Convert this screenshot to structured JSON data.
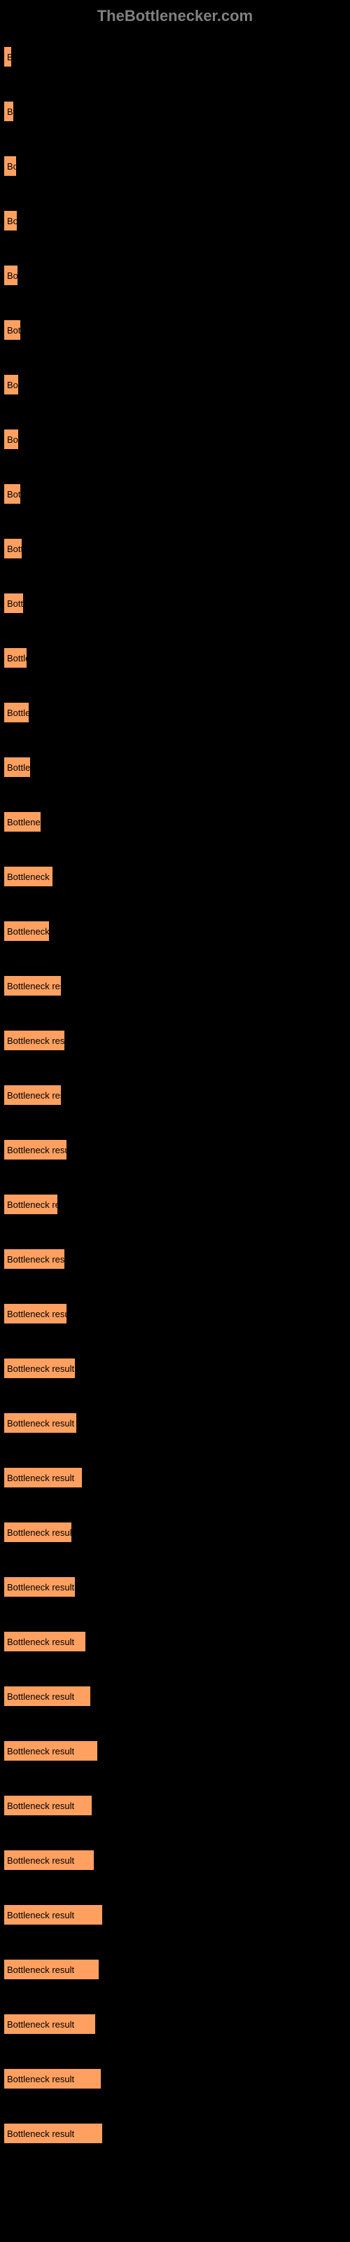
{
  "header": {
    "title": "TheBottlenecker.com"
  },
  "chart": {
    "type": "bar",
    "background_color": "#000000",
    "bar_color": "#ffa060",
    "bar_border_color": "#000000",
    "label_color": "#000000",
    "header_color": "#808080",
    "label_fontsize": 13,
    "header_fontsize": 22,
    "max_width": 490,
    "bars": [
      {
        "label": "B",
        "width_pct": 2.5
      },
      {
        "label": "B",
        "width_pct": 3
      },
      {
        "label": "Bo",
        "width_pct": 3.8
      },
      {
        "label": "Bo",
        "width_pct": 4
      },
      {
        "label": "Bo",
        "width_pct": 4.2
      },
      {
        "label": "Bot",
        "width_pct": 5
      },
      {
        "label": "Bo",
        "width_pct": 4.5
      },
      {
        "label": "Bo",
        "width_pct": 4.5
      },
      {
        "label": "Bot",
        "width_pct": 5.2
      },
      {
        "label": "Bott",
        "width_pct": 5.5
      },
      {
        "label": "Bottl",
        "width_pct": 6
      },
      {
        "label": "Bottle",
        "width_pct": 7
      },
      {
        "label": "Bottle",
        "width_pct": 7.5
      },
      {
        "label": "Bottlec",
        "width_pct": 8
      },
      {
        "label": "Bottleneck",
        "width_pct": 11
      },
      {
        "label": "Bottleneck res",
        "width_pct": 14.5
      },
      {
        "label": "Bottleneck r",
        "width_pct": 13.5
      },
      {
        "label": "Bottleneck result",
        "width_pct": 17
      },
      {
        "label": "Bottleneck result",
        "width_pct": 18
      },
      {
        "label": "Bottleneck resul",
        "width_pct": 17
      },
      {
        "label": "Bottleneck result",
        "width_pct": 18.5
      },
      {
        "label": "Bottleneck res",
        "width_pct": 16
      },
      {
        "label": "Bottleneck result",
        "width_pct": 18
      },
      {
        "label": "Bottleneck result",
        "width_pct": 18.5
      },
      {
        "label": "Bottleneck result",
        "width_pct": 21
      },
      {
        "label": "Bottleneck result",
        "width_pct": 21.5
      },
      {
        "label": "Bottleneck result",
        "width_pct": 23
      },
      {
        "label": "Bottleneck result",
        "width_pct": 20
      },
      {
        "label": "Bottleneck result",
        "width_pct": 21
      },
      {
        "label": "Bottleneck result",
        "width_pct": 24
      },
      {
        "label": "Bottleneck result",
        "width_pct": 25.5
      },
      {
        "label": "Bottleneck result",
        "width_pct": 27.5
      },
      {
        "label": "Bottleneck result",
        "width_pct": 26
      },
      {
        "label": "Bottleneck result",
        "width_pct": 26.5
      },
      {
        "label": "Bottleneck result",
        "width_pct": 29
      },
      {
        "label": "Bottleneck result",
        "width_pct": 28
      },
      {
        "label": "Bottleneck result",
        "width_pct": 27
      },
      {
        "label": "Bottleneck result",
        "width_pct": 28.5
      },
      {
        "label": "Bottleneck result",
        "width_pct": 29
      }
    ]
  }
}
